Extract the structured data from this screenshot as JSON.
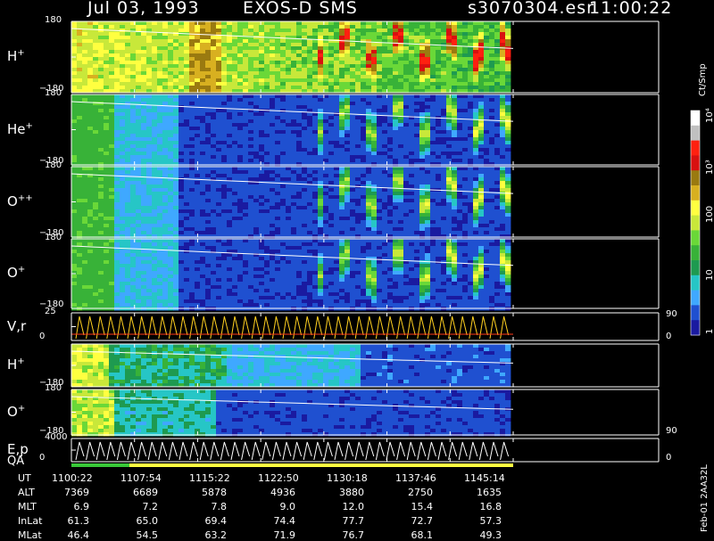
{
  "header": {
    "date": "Jul 03, 1993",
    "mission": "EXOS-D SMS",
    "file": "s3070304.esr",
    "time": "11:00:22"
  },
  "colorbar": {
    "unit": "Ct/Smp",
    "ticks": [
      {
        "label": "1",
        "value": 1
      },
      {
        "label": "10",
        "value": 10
      },
      {
        "label": "100",
        "value": 100
      },
      {
        "label": "10³",
        "value": 1000
      },
      {
        "label": "10⁴",
        "value": 10000
      }
    ],
    "colors": [
      "#1a1aa0",
      "#1f50d0",
      "#3fa8ff",
      "#26c6c6",
      "#1e9a50",
      "#38b238",
      "#6ad838",
      "#c8e83a",
      "#ffff40",
      "#d8b020",
      "#9a7a10",
      "#d81010",
      "#ff2010",
      "#c0c0c0",
      "#ffffff"
    ]
  },
  "panels": [
    {
      "id": "h-plus-1",
      "label": "H",
      "sup": "+",
      "ymax": "180",
      "ymin": "−180"
    },
    {
      "id": "he-plus",
      "label": "He",
      "sup": "+",
      "ymax": "180",
      "ymin": "−180"
    },
    {
      "id": "o-plus-plus",
      "label": "O",
      "sup": "++",
      "ymax": "180",
      "ymin": "−180"
    },
    {
      "id": "o-plus-1",
      "label": "O",
      "sup": "+",
      "ymax": "180",
      "ymin": "−180"
    },
    {
      "id": "vr",
      "label": "V,r",
      "sup": "",
      "ymax": "25",
      "ymin": "0",
      "right_top": "90",
      "right_bottom": "0"
    },
    {
      "id": "h-plus-2",
      "label": "H",
      "sup": "+",
      "ymax": "",
      "ymin": "−180"
    },
    {
      "id": "o-plus-2",
      "label": "O",
      "sup": "+",
      "ymax": "180",
      "ymin": "−180",
      "right_bottom": "90"
    },
    {
      "id": "ep",
      "label": "E,p",
      "sup": "",
      "ymax": "4000",
      "ymin": "0",
      "right_bottom": "0"
    }
  ],
  "qa_label": "QA",
  "side_label": "Feb-01 2AA32L",
  "chart_data": {
    "type": "heatmap",
    "title": "Jul 03, 1993   EXOS-D SMS",
    "x_label": "UT",
    "x": [
      "1100:22",
      "1107:54",
      "1115:22",
      "1122:50",
      "1130:18",
      "1137:46",
      "1145:14"
    ],
    "ylim": [
      -180,
      180
    ],
    "series": [
      {
        "name": "H+"
      },
      {
        "name": "He+"
      },
      {
        "name": "O++"
      },
      {
        "name": "O+"
      },
      {
        "name": "V,r"
      },
      {
        "name": "H+"
      },
      {
        "name": "O+"
      },
      {
        "name": "E,p"
      }
    ],
    "colorbar_range": [
      1,
      10000
    ],
    "colorbar_scale": "log"
  },
  "orbit_table": [
    {
      "label": "UT",
      "values": [
        "1100:22",
        "1107:54",
        "1115:22",
        "1122:50",
        "1130:18",
        "1137:46",
        "1145:14"
      ]
    },
    {
      "label": "ALT",
      "values": [
        "7369",
        "6689",
        "5878",
        "4936",
        "3880",
        "2750",
        "1635"
      ]
    },
    {
      "label": "MLT",
      "values": [
        "6.9",
        "7.2",
        "7.8",
        "9.0",
        "12.0",
        "15.4",
        "16.8"
      ]
    },
    {
      "label": "InLat",
      "values": [
        "61.3",
        "65.0",
        "69.4",
        "74.4",
        "77.7",
        "72.7",
        "57.3"
      ]
    },
    {
      "label": "MLat",
      "values": [
        "46.4",
        "54.5",
        "63.2",
        "71.9",
        "76.7",
        "68.1",
        "49.3"
      ]
    }
  ]
}
